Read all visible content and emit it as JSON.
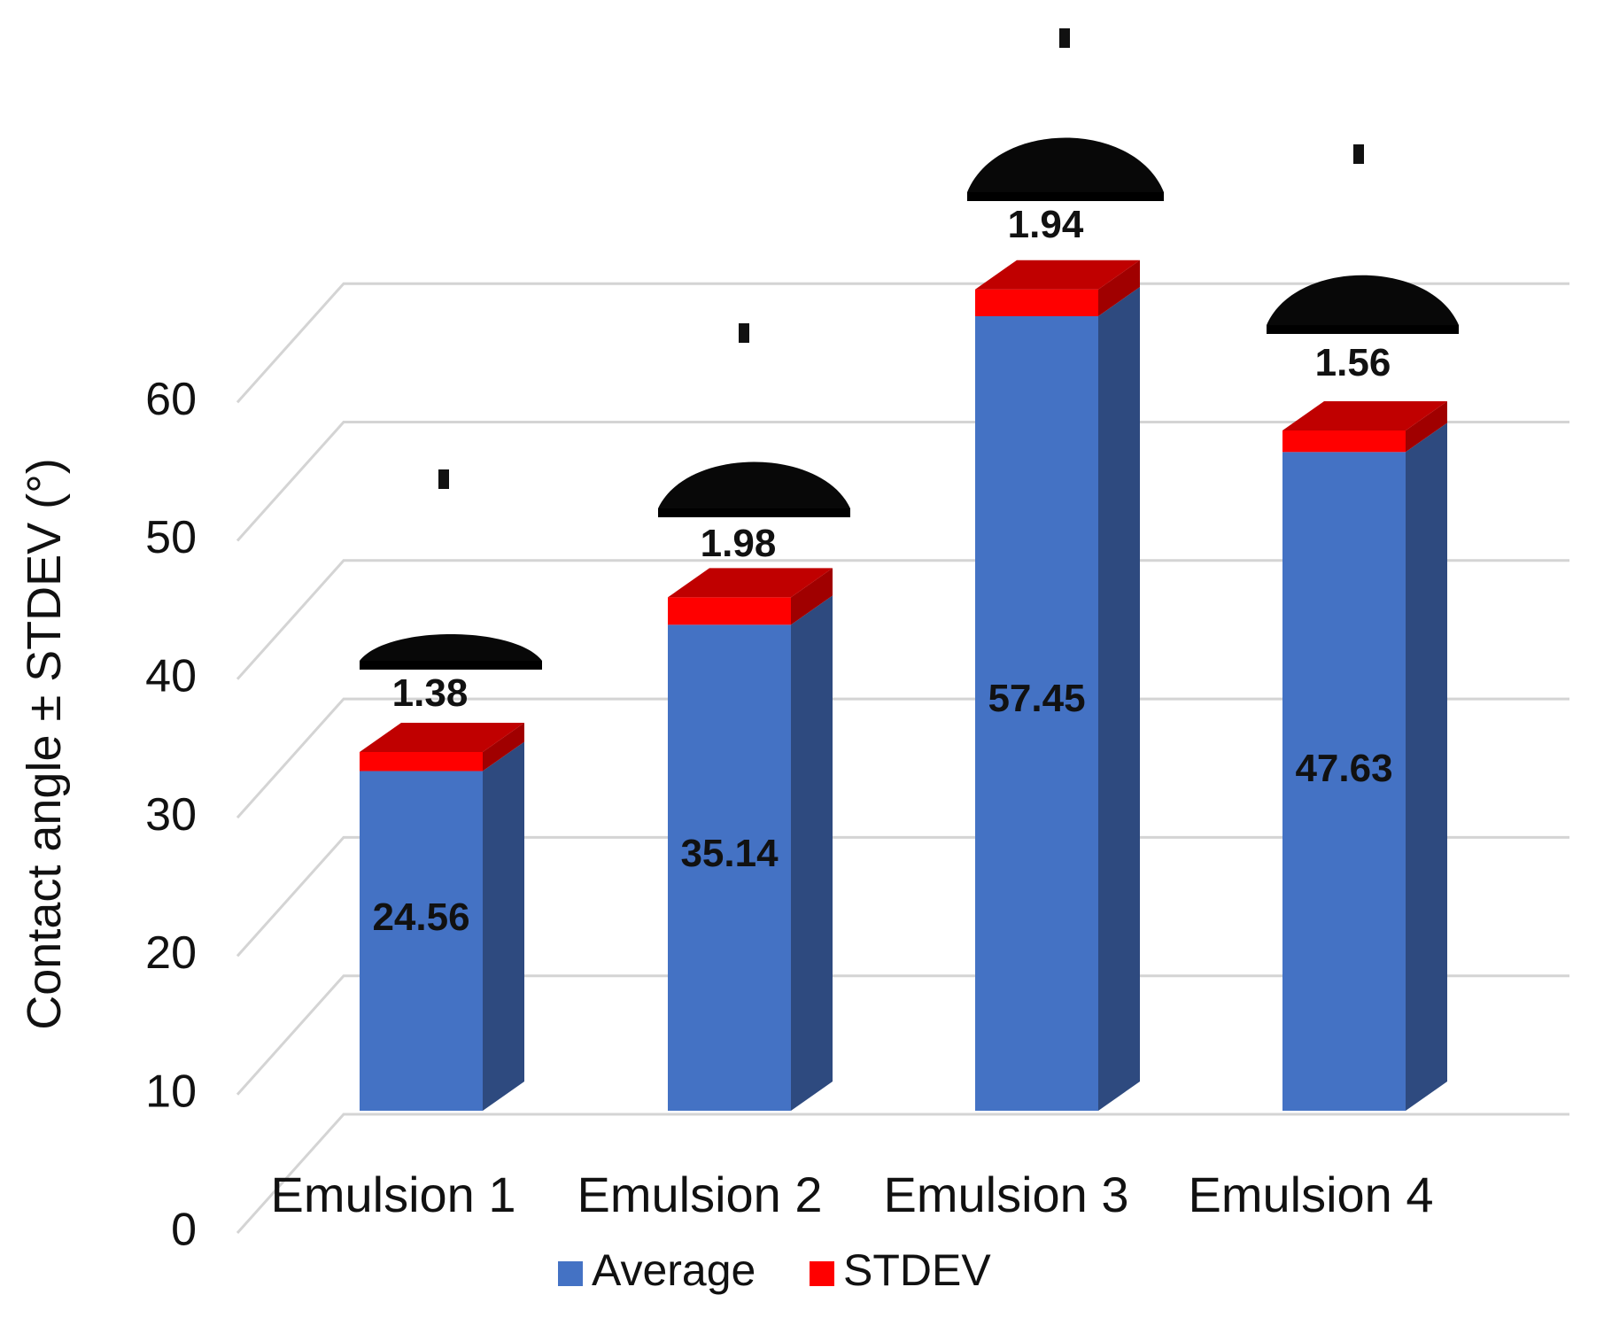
{
  "chart_data": {
    "type": "bar",
    "stacked": true,
    "style": "3d-column",
    "categories": [
      "Emulsion 1",
      "Emulsion 2",
      "Emulsion 3",
      "Emulsion 4"
    ],
    "series": [
      {
        "name": "Average",
        "values": [
          24.56,
          35.14,
          57.45,
          47.63
        ]
      },
      {
        "name": "STDEV",
        "values": [
          1.38,
          1.98,
          1.94,
          1.56
        ]
      }
    ],
    "average_labels": [
      "24.56",
      "35.14",
      "57.45",
      "47.63"
    ],
    "stdev_labels": [
      "1.38",
      "1.98",
      "1.94",
      "1.56"
    ],
    "ylabel": "Contact angle ± STDEV (°)",
    "xlabel": "",
    "ylim": [
      0,
      60
    ],
    "yticks": [
      "0",
      "10",
      "20",
      "30",
      "40",
      "50",
      "60"
    ],
    "grid": true,
    "legend_position": "bottom",
    "colors": {
      "average_front": "#4472C4",
      "average_side": "#2E4A7F",
      "stdev_front": "#FF0000",
      "stdev_top": "#C00000",
      "stdev_side": "#A00000"
    },
    "annotations": "contact-angle droplet photograph above each bar"
  }
}
